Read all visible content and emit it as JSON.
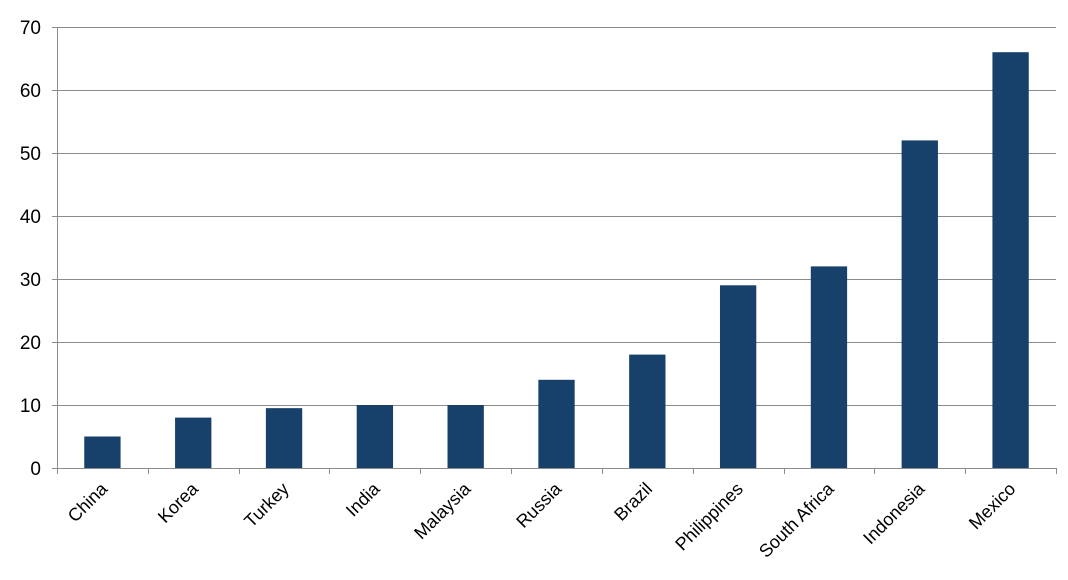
{
  "colors": {
    "bar": "#17416b",
    "grid": "#8c8c8c",
    "text": "#000000",
    "background": "#ffffff"
  },
  "chart_data": {
    "type": "bar",
    "title": "",
    "xlabel": "",
    "ylabel": "",
    "categories": [
      "China",
      "Korea",
      "Turkey",
      "India",
      "Malaysia",
      "Russia",
      "Brazil",
      "Philippines",
      "South Africa",
      "Indonesia",
      "Mexico"
    ],
    "values": [
      5,
      8,
      9.5,
      10,
      10,
      14,
      18,
      29,
      32,
      52,
      66
    ],
    "ylim": [
      0,
      70
    ],
    "yticks": [
      0,
      10,
      20,
      30,
      40,
      50,
      60,
      70
    ],
    "grid": true,
    "legend": "none",
    "x_tick_rotation_deg": -45
  }
}
